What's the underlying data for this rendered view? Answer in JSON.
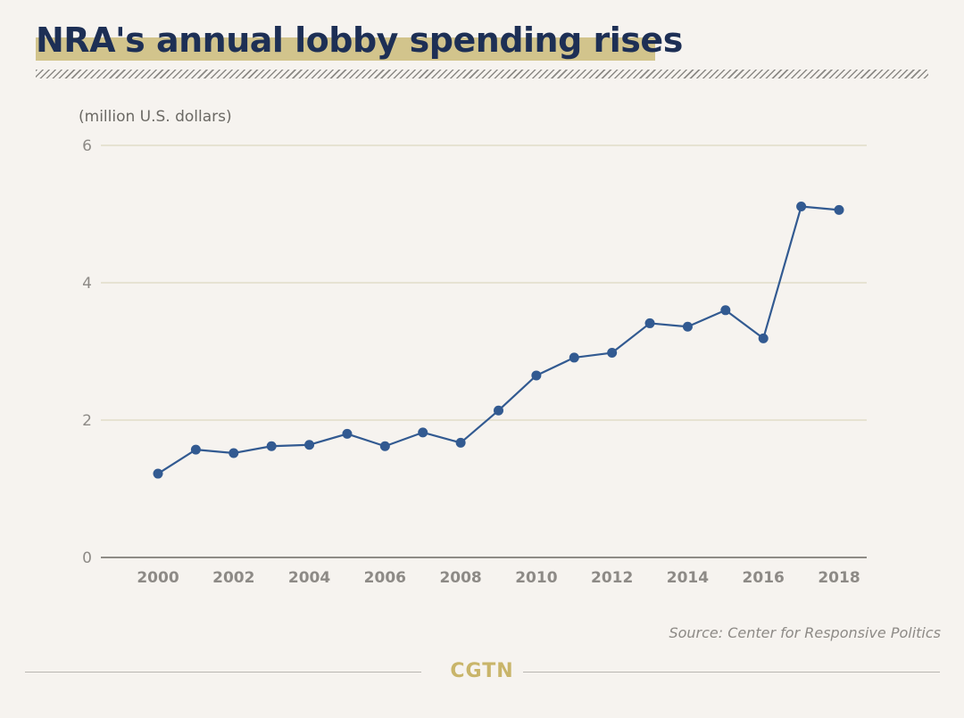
{
  "header": {
    "title": "NRA's annual lobby spending rises"
  },
  "chart_data": {
    "type": "line",
    "title": "NRA's annual lobby spending rises",
    "ylabel": "(million U.S. dollars)",
    "xlabel": "",
    "x": [
      2000,
      2001,
      2002,
      2003,
      2004,
      2005,
      2006,
      2007,
      2008,
      2009,
      2010,
      2011,
      2012,
      2013,
      2014,
      2015,
      2016,
      2017,
      2018
    ],
    "series": [
      {
        "name": "NRA lobby spending",
        "values": [
          1.22,
          1.57,
          1.52,
          1.62,
          1.64,
          1.8,
          1.62,
          1.82,
          1.67,
          2.14,
          2.65,
          2.91,
          2.98,
          3.41,
          3.36,
          3.6,
          3.19,
          5.11,
          5.06
        ]
      }
    ],
    "x_ticks": [
      "2000",
      "2002",
      "2004",
      "2006",
      "2008",
      "2010",
      "2012",
      "2014",
      "2016",
      "2018"
    ],
    "y_ticks": [
      "0",
      "2",
      "4",
      "6"
    ],
    "ylim": [
      0,
      6
    ],
    "grid": true,
    "line_color": "#325a91",
    "grid_color": "#d6d0b4",
    "axis_color": "#6b6964",
    "tick_label_color": "#8d8a86"
  },
  "source": "Source: Center for Responsive Politics",
  "footer": {
    "brand": "CGTN"
  }
}
